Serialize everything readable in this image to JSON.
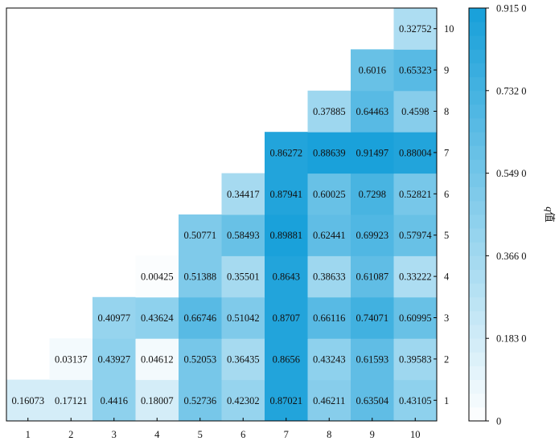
{
  "chart_data": {
    "type": "heatmap",
    "x_categories": [
      "1",
      "2",
      "3",
      "4",
      "5",
      "6",
      "7",
      "8",
      "9",
      "10"
    ],
    "y_categories": [
      "1",
      "2",
      "3",
      "4",
      "5",
      "6",
      "7",
      "8",
      "9",
      "10"
    ],
    "cells": [
      {
        "x": "1",
        "y": "1",
        "value": 0.16073,
        "label": "0.16073"
      },
      {
        "x": "2",
        "y": "1",
        "value": 0.17121,
        "label": "0.17121"
      },
      {
        "x": "3",
        "y": "1",
        "value": 0.4416,
        "label": "0.4416"
      },
      {
        "x": "4",
        "y": "1",
        "value": 0.18007,
        "label": "0.18007"
      },
      {
        "x": "5",
        "y": "1",
        "value": 0.52736,
        "label": "0.52736"
      },
      {
        "x": "6",
        "y": "1",
        "value": 0.42302,
        "label": "0.42302"
      },
      {
        "x": "7",
        "y": "1",
        "value": 0.87021,
        "label": "0.87021"
      },
      {
        "x": "8",
        "y": "1",
        "value": 0.46211,
        "label": "0.46211"
      },
      {
        "x": "9",
        "y": "1",
        "value": 0.63504,
        "label": "0.63504"
      },
      {
        "x": "10",
        "y": "1",
        "value": 0.43105,
        "label": "0.43105"
      },
      {
        "x": "2",
        "y": "2",
        "value": 0.03137,
        "label": "0.03137"
      },
      {
        "x": "3",
        "y": "2",
        "value": 0.43927,
        "label": "0.43927"
      },
      {
        "x": "4",
        "y": "2",
        "value": 0.04612,
        "label": "0.04612"
      },
      {
        "x": "5",
        "y": "2",
        "value": 0.52053,
        "label": "0.52053"
      },
      {
        "x": "6",
        "y": "2",
        "value": 0.36435,
        "label": "0.36435"
      },
      {
        "x": "7",
        "y": "2",
        "value": 0.8656,
        "label": "0.8656"
      },
      {
        "x": "8",
        "y": "2",
        "value": 0.43243,
        "label": "0.43243"
      },
      {
        "x": "9",
        "y": "2",
        "value": 0.61593,
        "label": "0.61593"
      },
      {
        "x": "10",
        "y": "2",
        "value": 0.39583,
        "label": "0.39583"
      },
      {
        "x": "3",
        "y": "3",
        "value": 0.40977,
        "label": "0.40977"
      },
      {
        "x": "4",
        "y": "3",
        "value": 0.43624,
        "label": "0.43624"
      },
      {
        "x": "5",
        "y": "3",
        "value": 0.66746,
        "label": "0.66746"
      },
      {
        "x": "6",
        "y": "3",
        "value": 0.51042,
        "label": "0.51042"
      },
      {
        "x": "7",
        "y": "3",
        "value": 0.8707,
        "label": "0.8707"
      },
      {
        "x": "8",
        "y": "3",
        "value": 0.66116,
        "label": "0.66116"
      },
      {
        "x": "9",
        "y": "3",
        "value": 0.74071,
        "label": "0.74071"
      },
      {
        "x": "10",
        "y": "3",
        "value": 0.60995,
        "label": "0.60995"
      },
      {
        "x": "4",
        "y": "4",
        "value": 0.00425,
        "label": "0.00425"
      },
      {
        "x": "5",
        "y": "4",
        "value": 0.51388,
        "label": "0.51388"
      },
      {
        "x": "6",
        "y": "4",
        "value": 0.35501,
        "label": "0.35501"
      },
      {
        "x": "7",
        "y": "4",
        "value": 0.8643,
        "label": "0.8643"
      },
      {
        "x": "8",
        "y": "4",
        "value": 0.38633,
        "label": "0.38633"
      },
      {
        "x": "9",
        "y": "4",
        "value": 0.61087,
        "label": "0.61087"
      },
      {
        "x": "10",
        "y": "4",
        "value": 0.33222,
        "label": "0.33222"
      },
      {
        "x": "5",
        "y": "5",
        "value": 0.50771,
        "label": "0.50771"
      },
      {
        "x": "6",
        "y": "5",
        "value": 0.58493,
        "label": "0.58493"
      },
      {
        "x": "7",
        "y": "5",
        "value": 0.89881,
        "label": "0.89881"
      },
      {
        "x": "8",
        "y": "5",
        "value": 0.62441,
        "label": "0.62441"
      },
      {
        "x": "9",
        "y": "5",
        "value": 0.69923,
        "label": "0.69923"
      },
      {
        "x": "10",
        "y": "5",
        "value": 0.57974,
        "label": "0.57974"
      },
      {
        "x": "6",
        "y": "6",
        "value": 0.34417,
        "label": "0.34417"
      },
      {
        "x": "7",
        "y": "6",
        "value": 0.87941,
        "label": "0.87941"
      },
      {
        "x": "8",
        "y": "6",
        "value": 0.60025,
        "label": "0.60025"
      },
      {
        "x": "9",
        "y": "6",
        "value": 0.7298,
        "label": "0.7298"
      },
      {
        "x": "10",
        "y": "6",
        "value": 0.52821,
        "label": "0.52821"
      },
      {
        "x": "7",
        "y": "7",
        "value": 0.86272,
        "label": "0.86272"
      },
      {
        "x": "8",
        "y": "7",
        "value": 0.88639,
        "label": "0.88639"
      },
      {
        "x": "9",
        "y": "7",
        "value": 0.91497,
        "label": "0.91497"
      },
      {
        "x": "10",
        "y": "7",
        "value": 0.88004,
        "label": "0.88004"
      },
      {
        "x": "8",
        "y": "8",
        "value": 0.37885,
        "label": "0.37885"
      },
      {
        "x": "9",
        "y": "8",
        "value": 0.64463,
        "label": "0.64463"
      },
      {
        "x": "10",
        "y": "8",
        "value": 0.4598,
        "label": "0.4598"
      },
      {
        "x": "9",
        "y": "9",
        "value": 0.6016,
        "label": "0.6016"
      },
      {
        "x": "10",
        "y": "9",
        "value": 0.65323,
        "label": "0.65323"
      },
      {
        "x": "10",
        "y": "10",
        "value": 0.32752,
        "label": "0.32752"
      }
    ],
    "y_axis_side": "right",
    "colorbar": {
      "title": "q值",
      "range": [
        0,
        0.915
      ],
      "ticks": [
        {
          "value": 0,
          "label": "0"
        },
        {
          "value": 0.183,
          "label": "0.183 0"
        },
        {
          "value": 0.366,
          "label": "0.366 0"
        },
        {
          "value": 0.549,
          "label": "0.549 0"
        },
        {
          "value": 0.732,
          "label": "0.732 0"
        },
        {
          "value": 0.915,
          "label": "0.915 0"
        }
      ],
      "color_low": "#ffffff",
      "color_high": "#169fd9",
      "levels": 30
    },
    "grid": false,
    "legend_position": "right"
  }
}
